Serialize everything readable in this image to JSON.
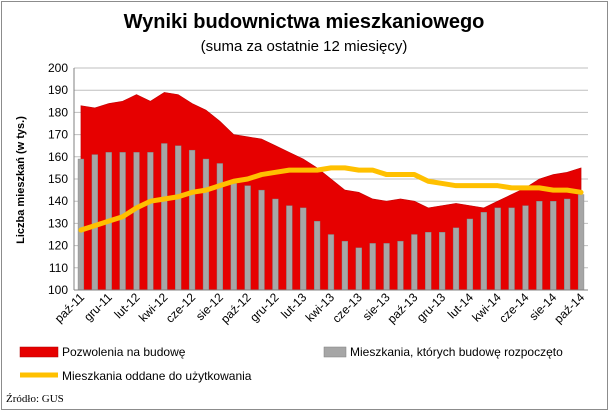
{
  "chart_data": {
    "type": "bar",
    "title": "Wyniki budownictwa mieszkaniowego",
    "subtitle": "(suma za ostatnie 12 miesięcy)",
    "ylabel": "Liczba mieszkań (w tys.)",
    "xlabel": "",
    "ylim": [
      100,
      200
    ],
    "yticks": [
      100,
      110,
      120,
      130,
      140,
      150,
      160,
      170,
      180,
      190,
      200
    ],
    "grid": true,
    "categories": [
      "paź-11",
      "lis-11",
      "gru-11",
      "sty-12",
      "lut-12",
      "mar-12",
      "kwi-12",
      "maj-12",
      "cze-12",
      "lip-12",
      "sie-12",
      "wrz-12",
      "paź-12",
      "lis-12",
      "gru-12",
      "sty-13",
      "lut-13",
      "mar-13",
      "kwi-13",
      "maj-13",
      "cze-13",
      "lip-13",
      "sie-13",
      "wrz-13",
      "paź-13",
      "lis-13",
      "gru-13",
      "sty-14",
      "lut-14",
      "mar-14",
      "kwi-14",
      "maj-14",
      "cze-14",
      "lip-14",
      "sie-14",
      "wrz-14",
      "paź-14"
    ],
    "xtick_labels": [
      "paź-11",
      "gru-11",
      "lut-12",
      "kwi-12",
      "cze-12",
      "sie-12",
      "paź-12",
      "gru-12",
      "lut-13",
      "kwi-13",
      "cze-13",
      "sie-13",
      "paź-13",
      "gru-13",
      "lut-14",
      "kwi-14",
      "cze-14",
      "sie-14",
      "paź-14"
    ],
    "series": [
      {
        "name": "Pozwolenia na budowę",
        "type": "area",
        "color": "#e60000",
        "values": [
          183,
          182,
          184,
          185,
          188,
          185,
          189,
          188,
          184,
          181,
          176,
          170,
          169,
          168,
          165,
          162,
          159,
          155,
          150,
          145,
          144,
          141,
          140,
          141,
          140,
          137,
          138,
          139,
          138,
          137,
          140,
          143,
          146,
          150,
          152,
          153,
          155
        ]
      },
      {
        "name": "Mieszkania, których budowę rozpoczęto",
        "type": "bar",
        "color": "#a6a6a6",
        "values": [
          159,
          161,
          162,
          162,
          162,
          162,
          166,
          165,
          163,
          159,
          157,
          148,
          147,
          145,
          141,
          138,
          137,
          131,
          125,
          122,
          119,
          121,
          121,
          122,
          125,
          126,
          126,
          128,
          132,
          135,
          137,
          137,
          138,
          140,
          140,
          141,
          143
        ]
      },
      {
        "name": "Mieszkania oddane do użytkowania",
        "type": "line",
        "color": "#ffc000",
        "values": [
          127,
          129,
          131,
          133,
          137,
          140,
          141,
          142,
          144,
          145,
          147,
          149,
          150,
          152,
          153,
          154,
          154,
          154,
          155,
          155,
          154,
          154,
          152,
          152,
          152,
          149,
          148,
          147,
          147,
          147,
          147,
          146,
          146,
          146,
          145,
          145,
          144
        ]
      }
    ],
    "legend": [
      "Pozwolenia na budowę",
      "Mieszkania, których budowę rozpoczęto",
      "Mieszkania oddane do użytkowania"
    ],
    "legend_position": "bottom",
    "source": "Źródło: GUS"
  }
}
